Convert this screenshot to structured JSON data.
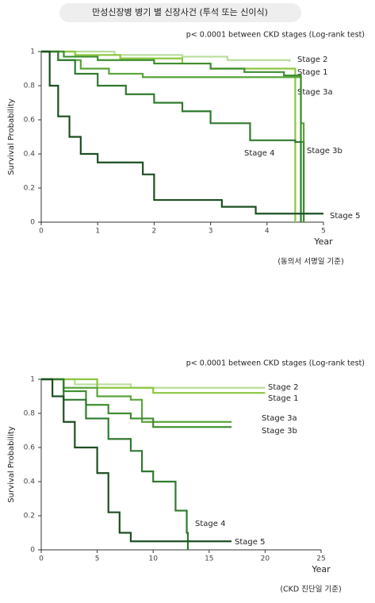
{
  "header": {
    "title": "만성신장병 병기 별 신장사건 (투석 또는 신이식)"
  },
  "chart_data": [
    {
      "type": "line",
      "annotation": "p< 0.0001 between CKD stages (Log-rank test)",
      "ylabel": "Survival  Probability",
      "xlabel": "Year",
      "footnote": "(동의서 서명일 기준)",
      "xlim": [
        0,
        5
      ],
      "xticks": [
        0,
        1,
        2,
        3,
        4,
        5
      ],
      "ylim": [
        0,
        1
      ],
      "yticks": [
        0,
        0.2,
        0.4,
        0.6,
        0.8,
        1
      ],
      "series": [
        {
          "name": "Stage 2",
          "color": "#b9dd9c",
          "x": [
            0,
            1.3,
            2.5,
            3.3,
            4.4
          ],
          "values": [
            1,
            0.98,
            0.97,
            0.95,
            0.94
          ]
        },
        {
          "name": "Stage 1",
          "color": "#8cc63f",
          "x": [
            0,
            0.6,
            1.4,
            2.5,
            3.0,
            4.47,
            4.5
          ],
          "values": [
            1,
            0.98,
            0.96,
            0.93,
            0.9,
            0.9,
            0
          ]
        },
        {
          "name": "Stage 3a",
          "color": "#5aa53a",
          "x": [
            0,
            0.3,
            0.7,
            1.2,
            1.8,
            4.2,
            4.6,
            4.65
          ],
          "values": [
            1,
            0.95,
            0.9,
            0.87,
            0.85,
            0.85,
            0.58,
            0
          ]
        },
        {
          "name": "Stage 3b",
          "color": "#3e8e2f",
          "x": [
            0,
            0.4,
            1.0,
            2.0,
            3.0,
            3.6,
            4.3,
            4.6,
            4.65
          ],
          "values": [
            1,
            0.97,
            0.95,
            0.93,
            0.9,
            0.88,
            0.86,
            0.47,
            0
          ]
        },
        {
          "name": "Stage 4",
          "color": "#2f7a2f",
          "x": [
            0,
            0.3,
            0.6,
            1.0,
            1.5,
            2.0,
            2.5,
            3.0,
            3.7,
            4.5,
            4.6
          ],
          "values": [
            1,
            0.95,
            0.87,
            0.8,
            0.75,
            0.7,
            0.65,
            0.58,
            0.48,
            0.47,
            0
          ]
        },
        {
          "name": "Stage 5",
          "color": "#1d4f22",
          "x": [
            0,
            0.15,
            0.3,
            0.5,
            0.7,
            1.0,
            1.8,
            2.0,
            3.2,
            3.8,
            5.0
          ],
          "values": [
            1,
            0.8,
            0.62,
            0.5,
            0.4,
            0.35,
            0.28,
            0.13,
            0.09,
            0.05,
            0.05
          ]
        }
      ]
    },
    {
      "type": "line",
      "annotation": "p< 0.0001 between CKD stages (Log-rank test)",
      "ylabel": "Survival  Probability",
      "xlabel": "Year",
      "footnote": "(CKD 진단일 기준)",
      "xlim": [
        0,
        25
      ],
      "xticks": [
        0,
        5,
        10,
        15,
        20,
        25
      ],
      "ylim": [
        0,
        1
      ],
      "yticks": [
        0,
        0.2,
        0.4,
        0.6,
        0.8,
        1
      ],
      "series": [
        {
          "name": "Stage 2",
          "color": "#b9dd9c",
          "x": [
            0,
            3,
            8,
            20
          ],
          "values": [
            1,
            0.97,
            0.95,
            0.95
          ]
        },
        {
          "name": "Stage 1",
          "color": "#8cc63f",
          "x": [
            0,
            5,
            10,
            20
          ],
          "values": [
            1,
            0.95,
            0.92,
            0.92
          ]
        },
        {
          "name": "Stage 3a",
          "color": "#5aa53a",
          "x": [
            0,
            2,
            5,
            8,
            9,
            17
          ],
          "values": [
            1,
            0.95,
            0.9,
            0.88,
            0.75,
            0.75
          ]
        },
        {
          "name": "Stage 3b",
          "color": "#3e8e2f",
          "x": [
            0,
            2,
            4,
            6,
            8,
            10,
            17
          ],
          "values": [
            1,
            0.93,
            0.85,
            0.8,
            0.77,
            0.72,
            0.72
          ]
        },
        {
          "name": "Stage 4",
          "color": "#2f7a2f",
          "x": [
            0,
            2,
            4,
            6,
            8,
            9,
            10,
            12,
            13,
            13.1
          ],
          "values": [
            1,
            0.88,
            0.77,
            0.65,
            0.58,
            0.46,
            0.4,
            0.23,
            0.1,
            0
          ]
        },
        {
          "name": "Stage 5",
          "color": "#1d4f22",
          "x": [
            0,
            1,
            2,
            3,
            5,
            6,
            7,
            8,
            17
          ],
          "values": [
            1,
            0.9,
            0.75,
            0.6,
            0.45,
            0.22,
            0.1,
            0.05,
            0.05
          ]
        }
      ]
    }
  ]
}
